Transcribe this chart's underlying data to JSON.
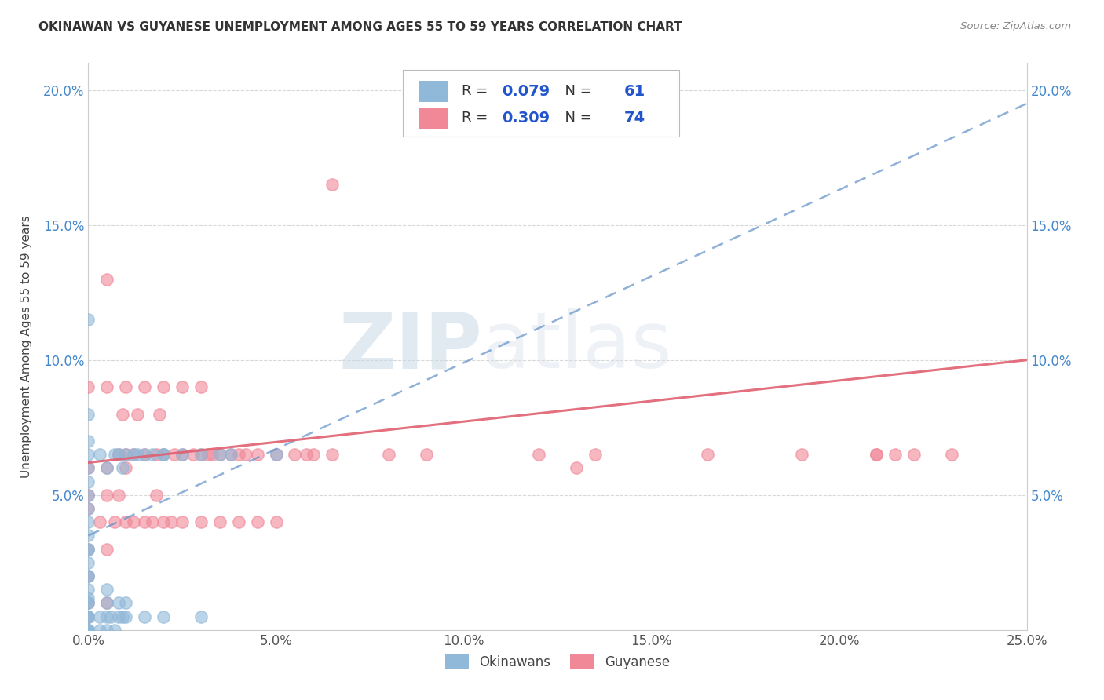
{
  "title": "OKINAWAN VS GUYANESE UNEMPLOYMENT AMONG AGES 55 TO 59 YEARS CORRELATION CHART",
  "source": "Source: ZipAtlas.com",
  "ylabel": "Unemployment Among Ages 55 to 59 years",
  "xlim": [
    0.0,
    0.25
  ],
  "ylim": [
    0.0,
    0.21
  ],
  "x_ticks": [
    0.0,
    0.05,
    0.1,
    0.15,
    0.2,
    0.25
  ],
  "y_ticks": [
    0.0,
    0.05,
    0.1,
    0.15,
    0.2
  ],
  "x_tick_labels": [
    "0.0%",
    "5.0%",
    "10.0%",
    "15.0%",
    "20.0%",
    "25.0%"
  ],
  "y_tick_labels": [
    "",
    "5.0%",
    "10.0%",
    "15.0%",
    "20.0%"
  ],
  "okinawan_R": 0.079,
  "okinawan_N": 61,
  "guyanese_R": 0.309,
  "guyanese_N": 74,
  "okinawan_color": "#90b8d8",
  "guyanese_color": "#f08898",
  "okinawan_line_color": "#6090c8",
  "guyanese_line_color": "#e06070",
  "legend_label_okinawan": "Okinawans",
  "legend_label_guyanese": "Guyanese",
  "watermark_zip": "ZIP",
  "watermark_atlas": "atlas",
  "background_color": "#ffffff",
  "grid_color": "#d8d8d8",
  "ok_x": [
    0.0,
    0.0,
    0.0,
    0.0,
    0.0,
    0.0,
    0.0,
    0.0,
    0.0,
    0.0,
    0.0,
    0.0,
    0.0,
    0.0,
    0.0,
    0.0,
    0.0,
    0.0,
    0.0,
    0.0,
    0.0,
    0.0,
    0.0,
    0.0,
    0.0,
    0.0,
    0.0,
    0.0,
    0.003,
    0.003,
    0.003,
    0.005,
    0.005,
    0.005,
    0.005,
    0.005,
    0.006,
    0.007,
    0.007,
    0.008,
    0.008,
    0.008,
    0.009,
    0.009,
    0.01,
    0.01,
    0.01,
    0.012,
    0.013,
    0.015,
    0.015,
    0.017,
    0.02,
    0.02,
    0.02,
    0.025,
    0.03,
    0.03,
    0.035,
    0.038,
    0.05
  ],
  "ok_y": [
    0.0,
    0.0,
    0.0,
    0.0,
    0.0,
    0.0,
    0.005,
    0.005,
    0.005,
    0.01,
    0.01,
    0.012,
    0.015,
    0.02,
    0.02,
    0.025,
    0.03,
    0.03,
    0.035,
    0.04,
    0.045,
    0.05,
    0.055,
    0.06,
    0.065,
    0.07,
    0.08,
    0.115,
    0.0,
    0.005,
    0.065,
    0.0,
    0.005,
    0.01,
    0.015,
    0.06,
    0.005,
    0.0,
    0.065,
    0.005,
    0.01,
    0.065,
    0.005,
    0.06,
    0.005,
    0.01,
    0.065,
    0.065,
    0.065,
    0.005,
    0.065,
    0.065,
    0.005,
    0.065,
    0.065,
    0.065,
    0.005,
    0.065,
    0.065,
    0.065,
    0.065
  ],
  "gu_x": [
    0.0,
    0.0,
    0.0,
    0.0,
    0.0,
    0.0,
    0.0,
    0.003,
    0.005,
    0.005,
    0.005,
    0.005,
    0.005,
    0.005,
    0.007,
    0.008,
    0.008,
    0.009,
    0.01,
    0.01,
    0.01,
    0.01,
    0.012,
    0.012,
    0.013,
    0.015,
    0.015,
    0.015,
    0.017,
    0.018,
    0.018,
    0.019,
    0.02,
    0.02,
    0.02,
    0.022,
    0.023,
    0.025,
    0.025,
    0.025,
    0.028,
    0.03,
    0.03,
    0.03,
    0.032,
    0.033,
    0.035,
    0.035,
    0.038,
    0.04,
    0.04,
    0.042,
    0.045,
    0.045,
    0.05,
    0.05,
    0.055,
    0.058,
    0.06,
    0.065,
    0.065,
    0.08,
    0.09,
    0.12,
    0.135,
    0.165,
    0.19,
    0.21,
    0.21,
    0.215,
    0.22,
    0.23,
    0.0,
    0.13
  ],
  "gu_y": [
    0.01,
    0.02,
    0.03,
    0.045,
    0.05,
    0.06,
    0.09,
    0.04,
    0.01,
    0.03,
    0.05,
    0.06,
    0.09,
    0.13,
    0.04,
    0.05,
    0.065,
    0.08,
    0.04,
    0.06,
    0.065,
    0.09,
    0.04,
    0.065,
    0.08,
    0.04,
    0.065,
    0.09,
    0.04,
    0.05,
    0.065,
    0.08,
    0.04,
    0.065,
    0.09,
    0.04,
    0.065,
    0.04,
    0.065,
    0.09,
    0.065,
    0.04,
    0.065,
    0.09,
    0.065,
    0.065,
    0.04,
    0.065,
    0.065,
    0.04,
    0.065,
    0.065,
    0.04,
    0.065,
    0.04,
    0.065,
    0.065,
    0.065,
    0.065,
    0.065,
    0.165,
    0.065,
    0.065,
    0.065,
    0.065,
    0.065,
    0.065,
    0.065,
    0.065,
    0.065,
    0.065,
    0.065,
    0.005,
    0.06
  ],
  "ok_line_x": [
    0.0,
    0.25
  ],
  "ok_line_y": [
    0.035,
    0.195
  ],
  "gu_line_x": [
    0.0,
    0.25
  ],
  "gu_line_y": [
    0.062,
    0.1
  ]
}
